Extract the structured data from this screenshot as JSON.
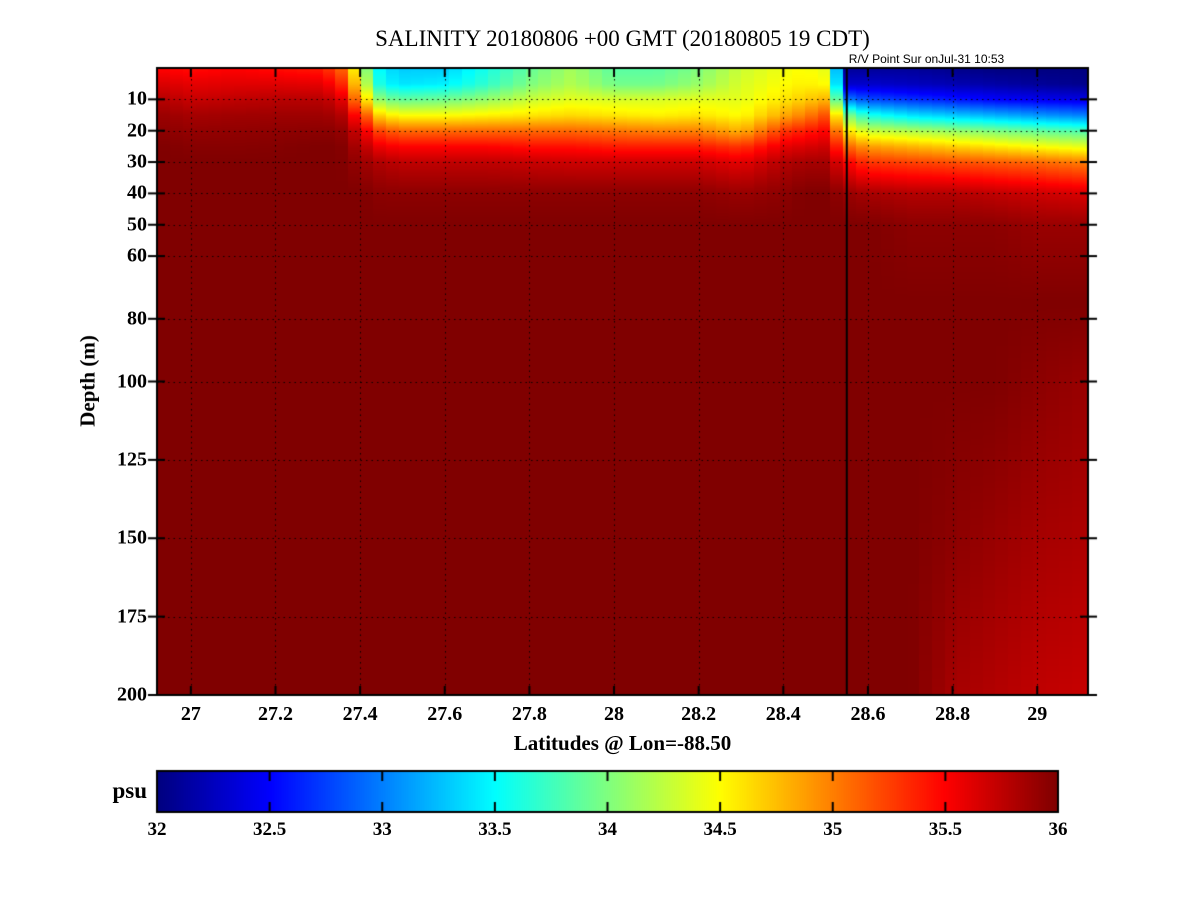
{
  "title": "SALINITY 20180806 +00 GMT (20180805 19 CDT)",
  "annotation": "R/V Point Sur onJul-31 10:53",
  "chart_data": {
    "type": "heatmap",
    "title": "SALINITY 20180806 +00 GMT (20180805 19 CDT)",
    "xlabel": "Latitudes @ Lon=-88.50",
    "ylabel": "Depth (m)",
    "colorbar_label": "psu",
    "colormap": "jet",
    "grid_on": true,
    "xlim": [
      26.92,
      29.12
    ],
    "ylim": [
      0,
      200
    ],
    "clim": [
      32,
      36
    ],
    "xticks": [
      27,
      27.2,
      27.4,
      27.6,
      27.8,
      28,
      28.2,
      28.4,
      28.6,
      28.8,
      29
    ],
    "yticks": [
      10,
      20,
      30,
      40,
      50,
      60,
      80,
      100,
      125,
      150,
      175,
      200
    ],
    "colorbar_ticks": [
      32,
      32.5,
      33,
      33.5,
      34,
      34.5,
      35,
      35.5,
      36
    ],
    "ship_track_line_lat": 28.55,
    "grid": {
      "lats": [
        26.92,
        27.0,
        27.1,
        27.2,
        27.3,
        27.35,
        27.4,
        27.45,
        27.5,
        27.6,
        27.7,
        27.8,
        27.9,
        28.0,
        28.1,
        28.2,
        28.3,
        28.4,
        28.45,
        28.5,
        28.55,
        28.6,
        28.7,
        28.8,
        28.9,
        29.0,
        29.12
      ],
      "depths": [
        0,
        5,
        10,
        15,
        20,
        25,
        30,
        40,
        50,
        75,
        100,
        150,
        200
      ],
      "salinity": [
        [
          35.5,
          35.65,
          35.8,
          35.9,
          35.95,
          36,
          36,
          36,
          36,
          36,
          36,
          36,
          36
        ],
        [
          35.45,
          35.6,
          35.72,
          35.85,
          35.92,
          35.97,
          36,
          36,
          36,
          36,
          36,
          36,
          36
        ],
        [
          35.5,
          35.62,
          35.75,
          35.87,
          35.93,
          35.97,
          36,
          36,
          36,
          36,
          36,
          36,
          36
        ],
        [
          35.45,
          35.62,
          35.78,
          35.88,
          35.94,
          35.98,
          36,
          36,
          36,
          36,
          36,
          36,
          36
        ],
        [
          35.4,
          35.6,
          35.78,
          35.88,
          35.95,
          36,
          36,
          36,
          36,
          36,
          36,
          36,
          36
        ],
        [
          35.2,
          35.45,
          35.7,
          35.85,
          35.95,
          36,
          36,
          36,
          36,
          36,
          36,
          36,
          36
        ],
        [
          34.3,
          34.5,
          34.85,
          35.35,
          35.65,
          35.8,
          35.9,
          36,
          36,
          36,
          36,
          36,
          36
        ],
        [
          33.4,
          33.5,
          34.0,
          34.6,
          35.2,
          35.55,
          35.8,
          35.95,
          36,
          36,
          36,
          36,
          36
        ],
        [
          33.3,
          33.4,
          33.9,
          34.5,
          35.1,
          35.5,
          35.75,
          35.95,
          36,
          36,
          36,
          36,
          36
        ],
        [
          33.3,
          33.45,
          33.95,
          34.5,
          35.1,
          35.5,
          35.75,
          35.95,
          36,
          36,
          36,
          36,
          36
        ],
        [
          33.6,
          33.7,
          34.1,
          34.55,
          35.1,
          35.5,
          35.75,
          35.95,
          36,
          36,
          36,
          36,
          36
        ],
        [
          33.9,
          34.0,
          34.3,
          34.6,
          35.1,
          35.45,
          35.72,
          35.95,
          36,
          36,
          36,
          36,
          36
        ],
        [
          34.15,
          34.2,
          34.4,
          34.65,
          35.1,
          35.45,
          35.7,
          35.95,
          36,
          36,
          36,
          36,
          36
        ],
        [
          33.85,
          33.95,
          34.35,
          34.6,
          35.05,
          35.4,
          35.7,
          35.95,
          36,
          36,
          36,
          36,
          36
        ],
        [
          33.85,
          33.95,
          34.35,
          34.55,
          35.0,
          35.4,
          35.7,
          35.95,
          36,
          36,
          36,
          36,
          36
        ],
        [
          34.0,
          34.1,
          34.4,
          34.6,
          35.0,
          35.4,
          35.7,
          35.95,
          36,
          36,
          36,
          36,
          36
        ],
        [
          34.3,
          34.35,
          34.4,
          34.5,
          34.8,
          35.3,
          35.6,
          35.9,
          36,
          36,
          36,
          36,
          36
        ],
        [
          34.45,
          34.5,
          34.6,
          34.85,
          35.3,
          35.6,
          35.8,
          35.95,
          36,
          36,
          36,
          36,
          36
        ],
        [
          34.5,
          34.55,
          34.7,
          35.0,
          35.4,
          35.65,
          35.85,
          36,
          36,
          36,
          36,
          36,
          36
        ],
        [
          34.4,
          34.5,
          34.8,
          35.2,
          35.5,
          35.7,
          35.85,
          36,
          36,
          36,
          36,
          36,
          36
        ],
        [
          32.1,
          32.3,
          33.0,
          34.0,
          34.6,
          35.1,
          35.5,
          35.9,
          36,
          36,
          36,
          36,
          36
        ],
        [
          32.1,
          32.3,
          32.8,
          33.6,
          34.3,
          34.9,
          35.3,
          35.85,
          36,
          36,
          36,
          36,
          36
        ],
        [
          32.1,
          32.25,
          32.7,
          33.4,
          34.2,
          34.8,
          35.25,
          35.8,
          35.95,
          36,
          36,
          36,
          36
        ],
        [
          32.05,
          32.2,
          32.6,
          33.3,
          34.1,
          34.7,
          35.2,
          35.8,
          35.95,
          36,
          36,
          35.95,
          35.85
        ],
        [
          32.0,
          32.15,
          32.5,
          33.2,
          34.0,
          34.6,
          35.15,
          35.75,
          35.95,
          36,
          36,
          35.9,
          35.8
        ],
        [
          32.0,
          32.1,
          32.45,
          33.1,
          33.9,
          34.5,
          35.1,
          35.7,
          35.9,
          36,
          35.95,
          35.85,
          35.75
        ],
        [
          32.0,
          32.05,
          32.4,
          33.0,
          33.8,
          34.4,
          35.0,
          35.65,
          35.9,
          36,
          35.9,
          35.82,
          35.72
        ]
      ]
    }
  }
}
